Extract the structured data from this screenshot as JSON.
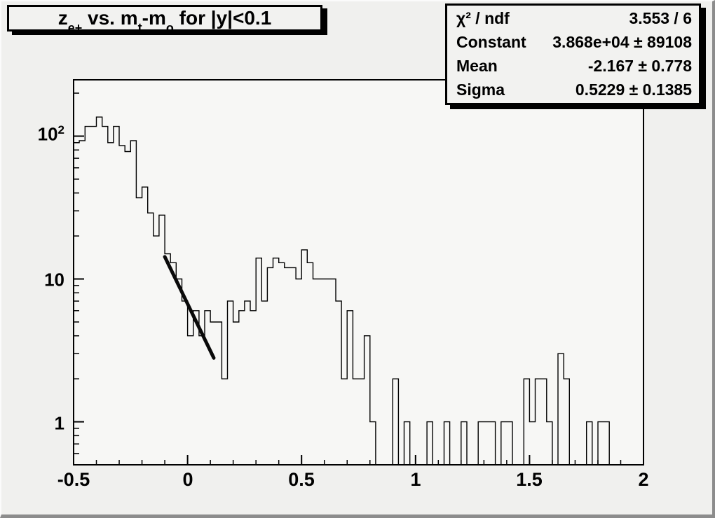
{
  "title": {
    "segments": [
      {
        "t": "z",
        "sub": "e+"
      },
      {
        "t": " vs. m",
        "sub": "t"
      },
      {
        "t": "-m",
        "sub": "o"
      },
      {
        "t": " for |y|<0.1",
        "sub": ""
      }
    ]
  },
  "stats": {
    "rows": [
      {
        "label": "χ² / ndf",
        "value": "3.553 / 6"
      },
      {
        "label": "Constant",
        "value": "3.868e+04 ± 89108"
      },
      {
        "label": "Mean",
        "value": "-2.167 ± 0.778"
      },
      {
        "label": "Sigma",
        "value": "0.5229 ± 0.1385"
      }
    ]
  },
  "chart_data": {
    "type": "bar",
    "subtype": "step-histogram-log-y",
    "title": "z_{e+} vs. m_{t}-m_{o} for |y|<0.1",
    "xlabel": "",
    "ylabel": "",
    "x_min": -0.5,
    "x_max": 2.0,
    "bin_width": 0.025,
    "n_bins": 100,
    "y_scale": "log",
    "y_range": [
      0.5,
      248
    ],
    "grid": false,
    "x_tick_labels": [
      "-0.5",
      "0",
      "0.5",
      "1",
      "1.5",
      "2"
    ],
    "x_ticks_major": [
      -0.5,
      0,
      0.5,
      1,
      1.5,
      2
    ],
    "x_tick_minor_step": 0.1,
    "y_tick_labels": [
      {
        "base": "10",
        "sup": "2"
      },
      {
        "base": "10",
        "sup": ""
      },
      {
        "base": "1",
        "sup": ""
      }
    ],
    "y_ticks_major": [
      100,
      10,
      1
    ],
    "y_ticks_minor": [
      0.6,
      0.7,
      0.8,
      0.9,
      2,
      3,
      4,
      5,
      6,
      7,
      8,
      9,
      20,
      30,
      40,
      50,
      60,
      70,
      80,
      90,
      200
    ],
    "bins": [
      90,
      93,
      117,
      117,
      136,
      117,
      90,
      117,
      86,
      78,
      93,
      37,
      44,
      29,
      20,
      28,
      15,
      13,
      10,
      7,
      4,
      6,
      4,
      6,
      5,
      5,
      2,
      7,
      5,
      6,
      7,
      6,
      14,
      7,
      12,
      14,
      13,
      12,
      12,
      10,
      16,
      13,
      10,
      10,
      10,
      10,
      7,
      2,
      6,
      2,
      2,
      4,
      1,
      0,
      0,
      0,
      2,
      0,
      1,
      0,
      0,
      0,
      1,
      0,
      0,
      1,
      0,
      0,
      1,
      0,
      0,
      1,
      1,
      1,
      0,
      1,
      1,
      0,
      0,
      2,
      1,
      2,
      2,
      1,
      0,
      3,
      2,
      0,
      0,
      0,
      1,
      0,
      1,
      1,
      0,
      0,
      0,
      0,
      0,
      0
    ],
    "fit_line": {
      "x1": -0.1,
      "v1": 14.3,
      "x2": 0.115,
      "v2": 2.8,
      "color": "#0a0a0a",
      "width": 5
    },
    "colors": {
      "canvas_bg": "#f0f0ee",
      "frame_bg": "#f7f7f5",
      "line": "#000000",
      "box_bg": "#f2f2f0"
    }
  }
}
